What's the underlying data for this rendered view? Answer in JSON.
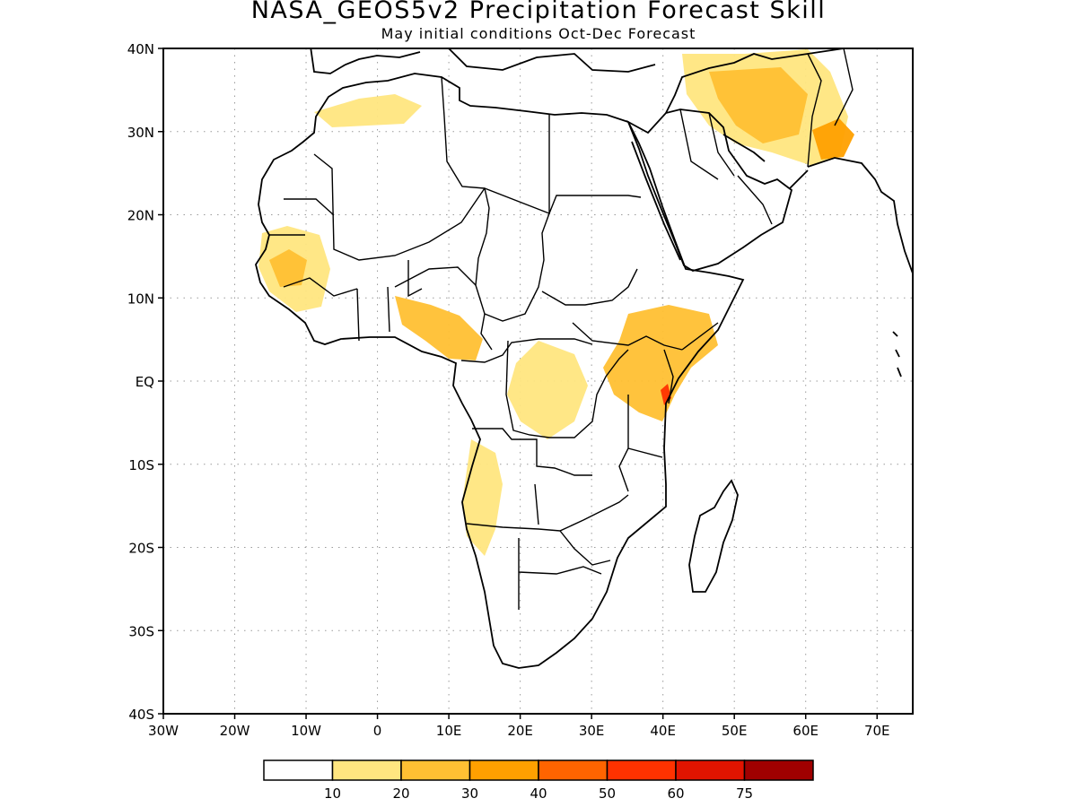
{
  "title": "NASA_GEOS5v2 Precipitation Forecast Skill",
  "subtitle": "May initial conditions  Oct-Dec Forecast",
  "map": {
    "lat_labels": [
      "40N",
      "30N",
      "20N",
      "10N",
      "EQ",
      "10S",
      "20S",
      "30S",
      "40S"
    ],
    "lon_labels": [
      "30W",
      "20W",
      "10W",
      "0",
      "10E",
      "20E",
      "30E",
      "40E",
      "50E",
      "60E",
      "70E"
    ],
    "lat_range": [
      -40,
      40
    ],
    "lon_range": [
      -30,
      75
    ],
    "grid": "dotted",
    "region": "Africa",
    "skill_regions": [
      {
        "name": "west-africa-coast",
        "level": 1
      },
      {
        "name": "guinea-highlands",
        "level": 2
      },
      {
        "name": "nigeria-cameroon",
        "level": 2
      },
      {
        "name": "east-africa-kenya",
        "level": 2
      },
      {
        "name": "lake-victoria",
        "level": 1
      },
      {
        "name": "angola",
        "level": 1
      },
      {
        "name": "north-africa-coast",
        "level": 1
      },
      {
        "name": "iran-afghanistan",
        "level": 1
      },
      {
        "name": "iran-core",
        "level": 2
      },
      {
        "name": "pakistan",
        "level": 3
      },
      {
        "name": "kenya-coast-max",
        "level": 5
      }
    ]
  },
  "colorbar": {
    "colors": [
      "#ffffff",
      "#ffe680",
      "#ffc033",
      "#ffa000",
      "#ff6400",
      "#ff3200",
      "#e11400",
      "#a00000"
    ],
    "labels": [
      "10",
      "20",
      "30",
      "40",
      "50",
      "60",
      "75"
    ]
  }
}
